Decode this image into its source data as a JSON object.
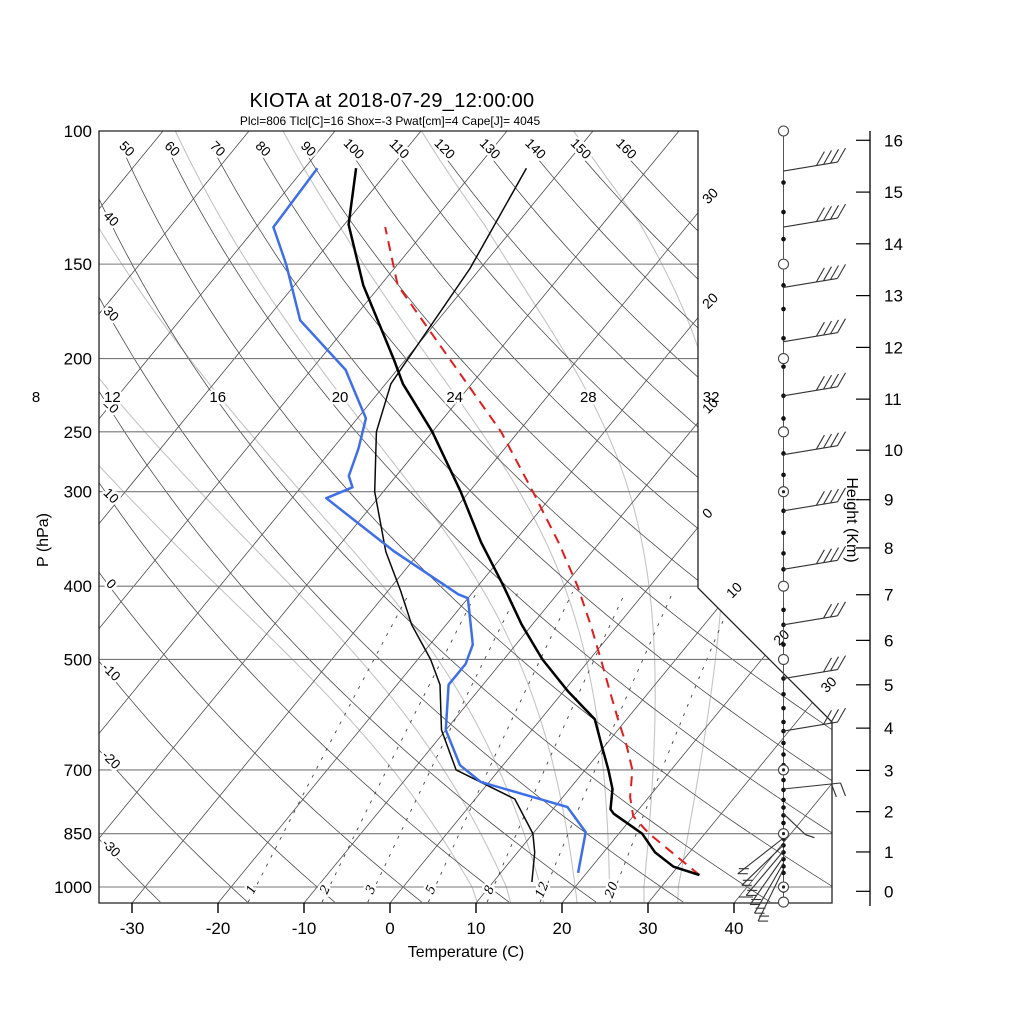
{
  "chart_data": {
    "type": "line",
    "variant": "skew-t-log-p-sounding",
    "title": "KIOTA at 2018-07-29_12:00:00",
    "subtitle": "Plcl=806 Tlcl[C]=16 Shox=-3 Pwat[cm]=4 Cape[J]= 4045",
    "indices": {
      "Plcl": 806,
      "Tlcl_C": 16,
      "Shox": -3,
      "Pwat_cm": 4,
      "Cape_J": 4045
    },
    "xlabel": "Temperature (C)",
    "ylabel_left": "P (hPa)",
    "ylabel_right": "Height (Km)",
    "pressure_ticks": [
      100,
      150,
      200,
      250,
      300,
      400,
      500,
      700,
      850,
      1000
    ],
    "temp_ticks": [
      -30,
      -20,
      -10,
      0,
      10,
      20,
      30,
      40
    ],
    "height_ticks_km": [
      0,
      1,
      2,
      3,
      4,
      5,
      6,
      7,
      8,
      9,
      10,
      11,
      12,
      13,
      14,
      15,
      16
    ],
    "grid": {
      "isotherms": {
        "min": -110,
        "max": 40,
        "step": 10
      },
      "dry_adiabats": {
        "min": -30,
        "max": 160,
        "step": 10,
        "left_edge_labels": [
          40,
          30,
          20,
          10,
          0,
          -10,
          -20,
          -30
        ],
        "top_edge_labels": [
          50,
          60,
          70,
          80,
          90,
          100,
          110,
          120,
          130,
          140,
          150,
          160
        ]
      },
      "moist_adiabats": [
        {
          "value": 8,
          "offset_c": -11.8
        },
        {
          "value": 12,
          "offset_c": -9.5
        },
        {
          "value": 16,
          "offset_c": -5.0
        },
        {
          "value": 20,
          "offset_c": 0.0
        },
        {
          "value": 24,
          "offset_c": 2.5
        },
        {
          "value": 28,
          "offset_c": 6.0
        },
        {
          "value": 32,
          "offset_c": 8.5
        }
      ],
      "mixing_ratio_g_kg": [
        1,
        2,
        3,
        5,
        8,
        12,
        20
      ],
      "isotherm_edge_labels": [
        {
          "t": -30,
          "text": "30"
        },
        {
          "t": -20,
          "text": "20"
        },
        {
          "t": -10,
          "text": "10"
        },
        {
          "t": 0,
          "text": "0"
        },
        {
          "t": 10,
          "text": "10"
        },
        {
          "t": 20,
          "text": "20"
        },
        {
          "t": 30,
          "text": "30"
        }
      ]
    },
    "series": [
      {
        "name": "temperature",
        "color": "#000000",
        "width": 2.5,
        "dash": "",
        "points_p_T": [
          [
            964,
            33.3
          ],
          [
            940,
            29.5
          ],
          [
            900,
            26
          ],
          [
            850,
            22.7
          ],
          [
            800,
            17.5
          ],
          [
            789,
            16.7
          ],
          [
            742,
            15
          ],
          [
            700,
            12.7
          ],
          [
            650,
            9.6
          ],
          [
            600,
            6.3
          ],
          [
            550,
            0.4
          ],
          [
            500,
            -5.5
          ],
          [
            450,
            -11.2
          ],
          [
            400,
            -17
          ],
          [
            350,
            -23.8
          ],
          [
            300,
            -31
          ],
          [
            250,
            -40
          ],
          [
            216,
            -48
          ],
          [
            200,
            -51.5
          ],
          [
            160,
            -62
          ],
          [
            133,
            -69.5
          ],
          [
            112,
            -74
          ]
        ]
      },
      {
        "name": "dewpoint",
        "color": "#3f6fe8",
        "width": 2.5,
        "dash": "",
        "points_p_T": [
          [
            958,
            19
          ],
          [
            846,
            16
          ],
          [
            784,
            11.5
          ],
          [
            726,
            -1
          ],
          [
            690,
            -5
          ],
          [
            620,
            -10
          ],
          [
            540,
            -14
          ],
          [
            507,
            -14
          ],
          [
            478,
            -15
          ],
          [
            415,
            -20
          ],
          [
            410,
            -21.5
          ],
          [
            360,
            -33
          ],
          [
            306,
            -46
          ],
          [
            296,
            -44
          ],
          [
            286,
            -45.5
          ],
          [
            263,
            -47
          ],
          [
            240,
            -49
          ],
          [
            207,
            -56
          ],
          [
            178,
            -66
          ],
          [
            150,
            -73
          ],
          [
            134,
            -78
          ],
          [
            112,
            -78.5
          ]
        ]
      },
      {
        "name": "wet_bulb",
        "color": "#0a0a0a",
        "width": 1.5,
        "dash": "",
        "points_p_T": [
          [
            985,
            14.5
          ],
          [
            900,
            12
          ],
          [
            850,
            10
          ],
          [
            765,
            4.6
          ],
          [
            700,
            -5
          ],
          [
            620,
            -10.5
          ],
          [
            540,
            -15
          ],
          [
            500,
            -18.5
          ],
          [
            450,
            -24
          ],
          [
            406,
            -28.5
          ],
          [
            360,
            -34
          ],
          [
            300,
            -41
          ],
          [
            250,
            -46.5
          ],
          [
            216,
            -49.4
          ],
          [
            152,
            -51.2
          ],
          [
            112,
            -54.2
          ]
        ]
      },
      {
        "name": "parcel",
        "color": "#e21d1d",
        "width": 2,
        "dash": "10 7",
        "points_p_T": [
          [
            964,
            33.3
          ],
          [
            850,
            23.5
          ],
          [
            806,
            20
          ],
          [
            760,
            17.8
          ],
          [
            700,
            15.5
          ],
          [
            650,
            12.5
          ],
          [
            600,
            9
          ],
          [
            550,
            5.3
          ],
          [
            500,
            1.3
          ],
          [
            450,
            -3.2
          ],
          [
            400,
            -8.4
          ],
          [
            350,
            -14.8
          ],
          [
            300,
            -22.6
          ],
          [
            250,
            -32
          ],
          [
            200,
            -45
          ],
          [
            160,
            -58
          ],
          [
            134,
            -65
          ]
        ]
      }
    ],
    "wind_column": {
      "staff_p_range": [
        100,
        1047
      ],
      "level_dots_p": [
        117,
        128,
        139,
        160,
        172,
        188,
        205,
        224,
        240,
        267,
        285,
        318,
        340,
        362,
        380,
        404,
        430,
        450,
        478,
        505,
        530,
        556,
        580,
        605,
        622,
        645,
        668,
        690,
        722,
        744,
        767,
        785,
        804,
        823,
        863,
        881,
        900,
        919,
        939,
        958,
        996,
        1011
      ],
      "circles_p": [
        100,
        150,
        200,
        250,
        300,
        400,
        500,
        700,
        850,
        1000,
        1047
      ],
      "circles_with_dot_p": [
        300,
        700,
        850,
        1000
      ],
      "barbs_upper": [
        {
          "p": 113,
          "ticks": 4
        },
        {
          "p": 134,
          "ticks": 4
        },
        {
          "p": 161,
          "ticks": 4
        },
        {
          "p": 190,
          "ticks": 4
        },
        {
          "p": 224,
          "ticks": 4
        },
        {
          "p": 268,
          "ticks": 4
        },
        {
          "p": 318,
          "ticks": 4
        },
        {
          "p": 380,
          "ticks": 4
        },
        {
          "p": 450,
          "ticks": 3
        },
        {
          "p": 530,
          "ticks": 3
        },
        {
          "p": 622,
          "ticks": 3
        },
        {
          "p": 742,
          "ticks": 2,
          "style": "down"
        },
        {
          "p": 800,
          "ticks": 1,
          "style": "hook"
        }
      ],
      "barbs_surface_fan": [
        {
          "y": 838,
          "angle": 38
        },
        {
          "y": 845,
          "angle": 44
        },
        {
          "y": 851,
          "angle": 50
        },
        {
          "y": 857,
          "angle": 55
        },
        {
          "y": 863,
          "angle": 60
        },
        {
          "y": 869,
          "angle": 64
        }
      ]
    },
    "colors": {
      "isotherm": "#4d4d4d",
      "dry_adiabat": "#4d4d4d",
      "moist_adiabat": "#c4c4c4",
      "mixing_ratio": "#444444",
      "pressure_line": "#777777",
      "border": "#222222",
      "subtitle": "#b14a2a",
      "wind": "#333333"
    }
  }
}
